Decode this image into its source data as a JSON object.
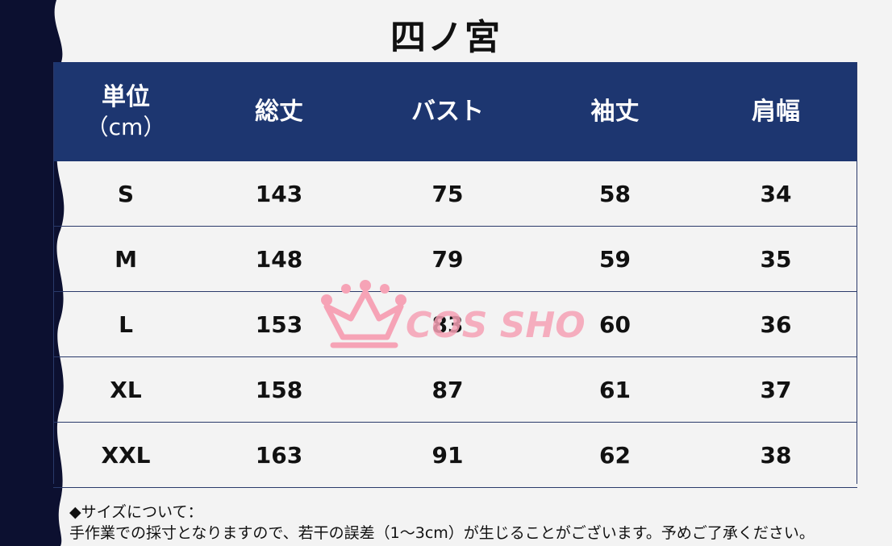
{
  "title": "四ノ宮",
  "table": {
    "header": {
      "unit_label": "単位",
      "unit_sub": "（cm）",
      "columns": [
        "総丈",
        "バスト",
        "袖丈",
        "肩幅"
      ]
    },
    "rows": [
      {
        "size": "S",
        "values": [
          "143",
          "75",
          "58",
          "34"
        ]
      },
      {
        "size": "M",
        "values": [
          "148",
          "79",
          "59",
          "35"
        ]
      },
      {
        "size": "L",
        "values": [
          "153",
          "83",
          "60",
          "36"
        ]
      },
      {
        "size": "XL",
        "values": [
          "158",
          "87",
          "61",
          "37"
        ]
      },
      {
        "size": "XXL",
        "values": [
          "163",
          "91",
          "62",
          "38"
        ]
      }
    ]
  },
  "watermark": {
    "text": "COS SHOW",
    "crown_color": "#f6a3b6",
    "text_color": "#f4a0b4"
  },
  "notes": {
    "heading": "◆サイズについて：",
    "body": "手作業での採寸となりますので、若干の誤差（1～3cm）が生じることがございます。予めご了承ください。"
  },
  "colors": {
    "header_bg": "#1d3670",
    "border": "#2a3a6a",
    "wave": "#0c1030"
  }
}
